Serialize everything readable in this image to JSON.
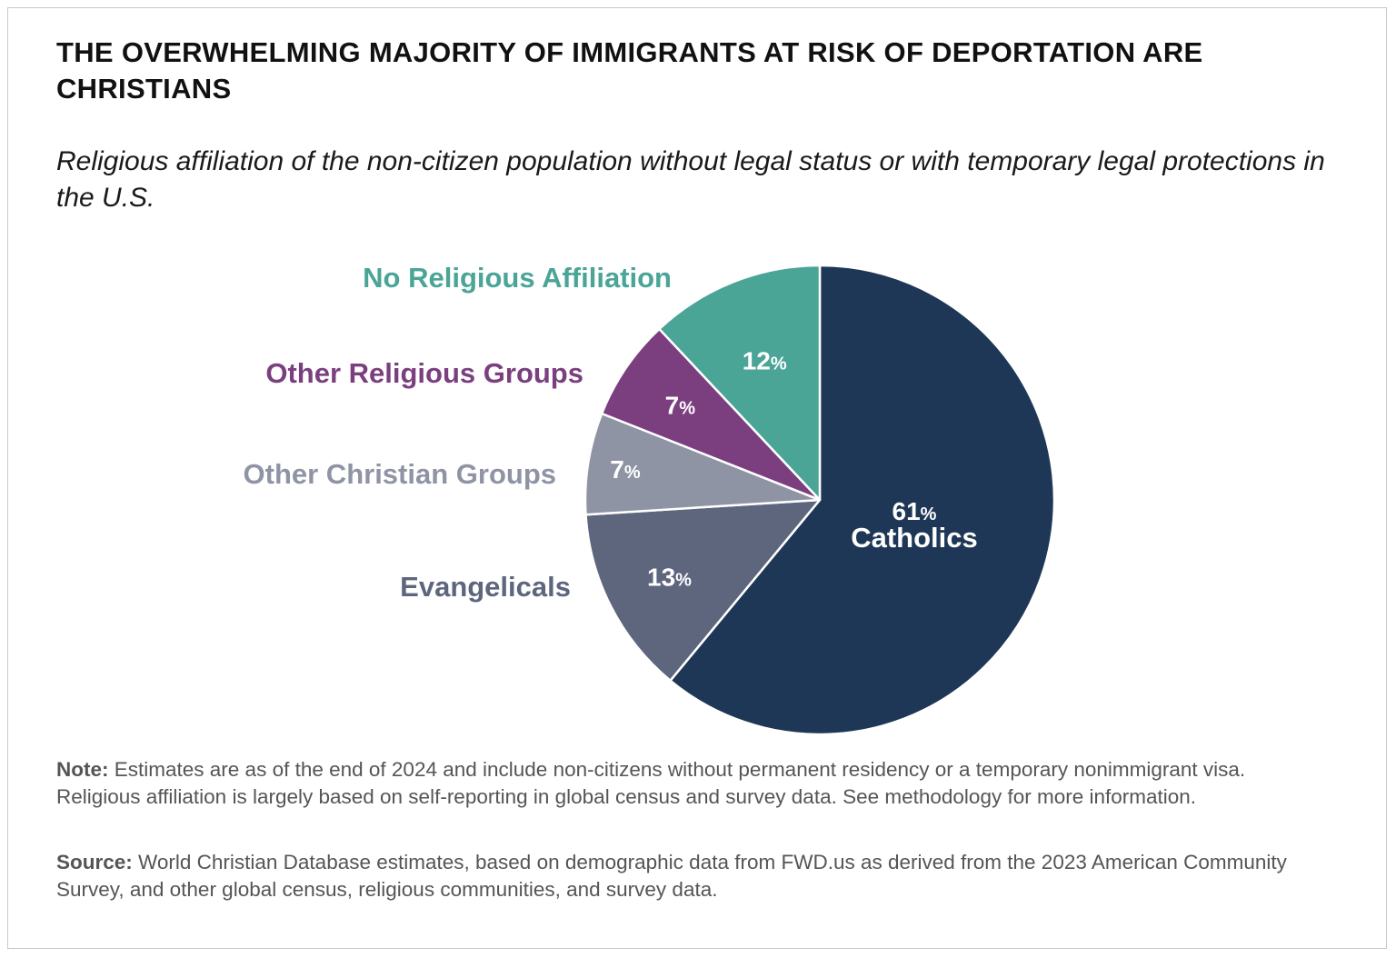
{
  "title": "THE OVERWHELMING MAJORITY OF IMMIGRANTS AT RISK OF DEPORTATION ARE CHRISTIANS",
  "subtitle": "Religious affiliation of the non-citizen population without legal status or with temporary legal protections in the U.S.",
  "note": {
    "label": "Note:",
    "text": " Estimates are as of the end of 2024 and include non-citizens without permanent residency or a temporary nonimmigrant visa. Religious affiliation is largely based on self-reporting in global census and survey data. See methodology for more information."
  },
  "source": {
    "label": "Source:",
    "text": " World Christian Database estimates, based on demographic data from FWD.us as derived from the 2023 American Community Survey, and other global census, religious communities, and survey data."
  },
  "chart_data": {
    "type": "pie",
    "unit": "%",
    "start": "12 o'clock, clockwise",
    "slices": [
      {
        "name": "Catholics",
        "value": 61,
        "label": "61%",
        "color": "#1f3756"
      },
      {
        "name": "Evangelicals",
        "value": 13,
        "label": "13%",
        "color": "#5e667e"
      },
      {
        "name": "Other Christian Groups",
        "value": 7,
        "label": "7%",
        "color": "#8f94a5"
      },
      {
        "name": "Other Religious Groups",
        "value": 7,
        "label": "7%",
        "color": "#7b3f7f"
      },
      {
        "name": "No Religious Affiliation",
        "value": 12,
        "label": "12%",
        "color": "#4aa597"
      }
    ]
  }
}
